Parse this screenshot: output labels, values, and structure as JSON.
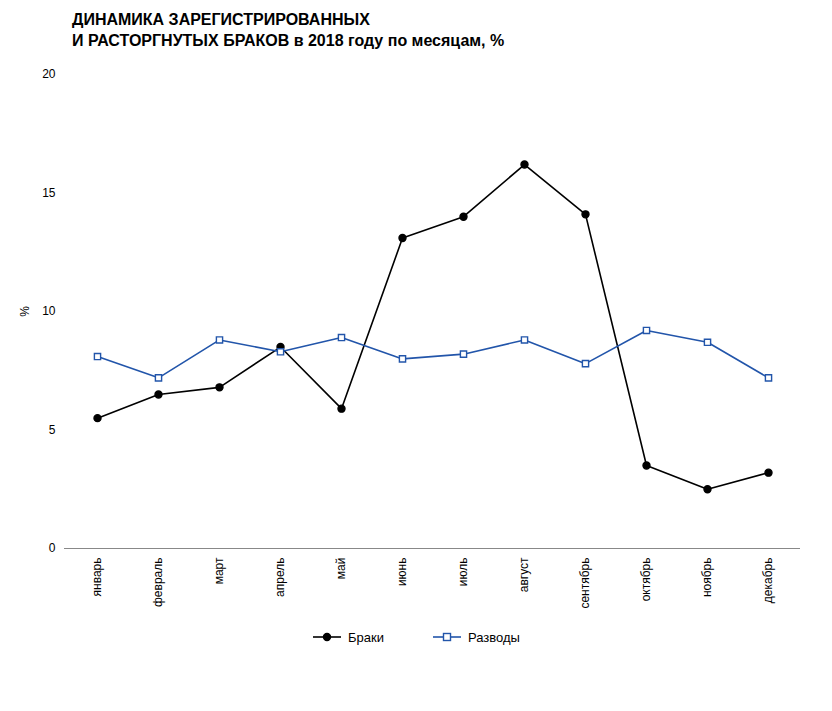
{
  "chart_data": {
    "type": "line",
    "title": "ДИНАМИКА ЗАРЕГИСТРИРОВАННЫХ\nИ РАСТОРГНУТЫХ БРАКОВ в 2018 году по месяцам, %",
    "y_label": "%",
    "categories": [
      "январь",
      "февраль",
      "март",
      "апрель",
      "май",
      "июнь",
      "июль",
      "август",
      "сентябрь",
      "октябрь",
      "ноябрь",
      "декабрь"
    ],
    "series": [
      {
        "name": "Браки",
        "color": "#000000",
        "marker": "circle",
        "values": [
          5.5,
          6.5,
          6.8,
          8.5,
          5.9,
          13.1,
          14.0,
          16.2,
          14.1,
          3.5,
          2.5,
          3.2
        ]
      },
      {
        "name": "Разводы",
        "color": "#2255aa",
        "marker": "square",
        "values": [
          8.1,
          7.2,
          8.8,
          8.3,
          8.9,
          8.0,
          8.2,
          8.8,
          7.8,
          9.2,
          8.7,
          7.2
        ]
      }
    ],
    "ylim": [
      0,
      20
    ],
    "yticks": [
      0,
      5,
      10,
      15,
      20
    ],
    "grid": false,
    "legend": "bottom"
  }
}
